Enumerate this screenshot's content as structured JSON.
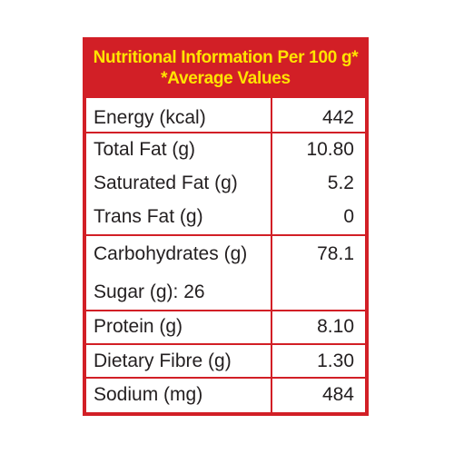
{
  "header": {
    "line1": "Nutritional Information Per 100 g*",
    "line2": "*Average Values"
  },
  "rows": [
    {
      "label": "Energy (kcal)",
      "value": "442"
    },
    {
      "label": "Total Fat (g)",
      "value": "10.80"
    },
    {
      "label": "Saturated Fat (g)",
      "value": "5.2"
    },
    {
      "label": "Trans Fat (g)",
      "value": "0"
    },
    {
      "label": "Carbohydrates (g)",
      "value": "78.1"
    },
    {
      "label": "Sugar (g): 26",
      "value": ""
    },
    {
      "label": "Protein (g)",
      "value": "8.10"
    },
    {
      "label": "Dietary Fibre (g)",
      "value": "1.30"
    },
    {
      "label": "Sodium (mg)",
      "value": "484"
    }
  ],
  "colors": {
    "border": "#d21f26",
    "header_bg": "#d21f26",
    "header_text": "#ffe400",
    "body_text": "#231f20"
  }
}
